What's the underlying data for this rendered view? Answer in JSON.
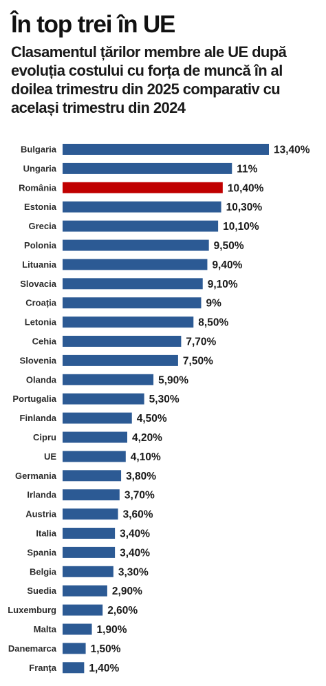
{
  "title": "În top trei în UE",
  "subtitle": "Clasamentul țărilor membre ale UE după evoluția costului cu forța de muncă în al doilea trimestru din 2025 comparativ cu același trimestru din 2024",
  "colors": {
    "bar": "#2c5a94",
    "highlight": "#c00000"
  },
  "chart_data": {
    "type": "bar",
    "orientation": "horizontal",
    "title": "",
    "xlabel": "",
    "ylabel": "",
    "unit": "%",
    "xlim": [
      0,
      13.4
    ],
    "grid": false,
    "legend": "none",
    "highlight_category": "România",
    "categories": [
      "Bulgaria",
      "Ungaria",
      "România",
      "Estonia",
      "Grecia",
      "Polonia",
      "Lituania",
      "Slovacia",
      "Croația",
      "Letonia",
      "Cehia",
      "Slovenia",
      "Olanda",
      "Portugalia",
      "Finlanda",
      "Cipru",
      "UE",
      "Germania",
      "Irlanda",
      "Austria",
      "Italia",
      "Spania",
      "Belgia",
      "Suedia",
      "Luxemburg",
      "Malta",
      "Danemarca",
      "Franța"
    ],
    "values": [
      13.4,
      11,
      10.4,
      10.3,
      10.1,
      9.5,
      9.4,
      9.1,
      9,
      8.5,
      7.7,
      7.5,
      5.9,
      5.3,
      4.5,
      4.2,
      4.1,
      3.8,
      3.7,
      3.6,
      3.4,
      3.4,
      3.3,
      2.9,
      2.6,
      1.9,
      1.5,
      1.4
    ],
    "value_labels": [
      "13,40%",
      "11%",
      "10,40%",
      "10,30%",
      "10,10%",
      "9,50%",
      "9,40%",
      "9,10%",
      "9%",
      "8,50%",
      "7,70%",
      "7,50%",
      "5,90%",
      "5,30%",
      "4,50%",
      "4,20%",
      "4,10%",
      "3,80%",
      "3,70%",
      "3,60%",
      "3,40%",
      "3,40%",
      "3,30%",
      "2,90%",
      "2,60%",
      "1,90%",
      "1,50%",
      "1,40%"
    ]
  }
}
